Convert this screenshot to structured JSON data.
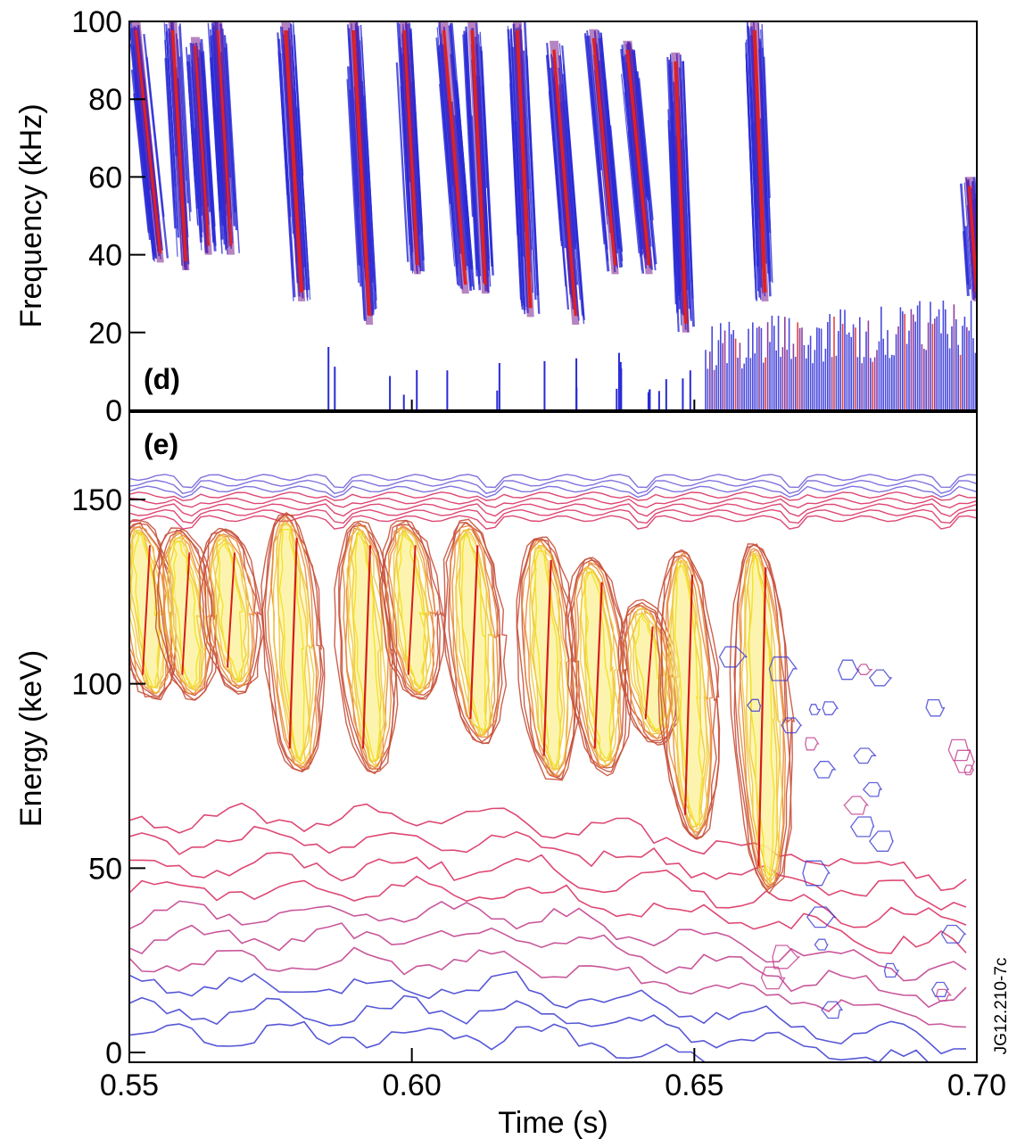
{
  "chart_data": [
    {
      "panel": "(d)",
      "type": "heatmap",
      "xlim": [
        0.55,
        0.7
      ],
      "ylim": [
        0,
        100
      ],
      "ylabel": "Frequency (kHz)",
      "y_ticks": [
        "0",
        "20",
        "40",
        "60",
        "80",
        "100"
      ],
      "y_tick_values": [
        0,
        20,
        40,
        60,
        80,
        100
      ],
      "colors": {
        "low": "#2a2ad6",
        "mid": "#7a1f8f",
        "high": "#e02020"
      },
      "chirp_bursts": [
        {
          "t": 0.551,
          "f_top": 100,
          "f_bottom": 38,
          "dt": 0.0045,
          "intensity": 0.6
        },
        {
          "t": 0.5575,
          "f_top": 100,
          "f_bottom": 36,
          "dt": 0.0025,
          "intensity": 0.8
        },
        {
          "t": 0.5615,
          "f_top": 96,
          "f_bottom": 40,
          "dt": 0.0025,
          "intensity": 0.5
        },
        {
          "t": 0.5655,
          "f_top": 100,
          "f_bottom": 40,
          "dt": 0.0025,
          "intensity": 0.5
        },
        {
          "t": 0.5775,
          "f_top": 100,
          "f_bottom": 28,
          "dt": 0.003,
          "intensity": 1.0
        },
        {
          "t": 0.5895,
          "f_top": 100,
          "f_bottom": 22,
          "dt": 0.003,
          "intensity": 0.9
        },
        {
          "t": 0.5985,
          "f_top": 100,
          "f_bottom": 35,
          "dt": 0.0025,
          "intensity": 0.7
        },
        {
          "t": 0.6055,
          "f_top": 100,
          "f_bottom": 30,
          "dt": 0.004,
          "intensity": 0.7
        },
        {
          "t": 0.6105,
          "f_top": 100,
          "f_bottom": 30,
          "dt": 0.0025,
          "intensity": 0.8
        },
        {
          "t": 0.6185,
          "f_top": 100,
          "f_bottom": 24,
          "dt": 0.0025,
          "intensity": 0.9
        },
        {
          "t": 0.625,
          "f_top": 95,
          "f_bottom": 22,
          "dt": 0.004,
          "intensity": 0.7
        },
        {
          "t": 0.632,
          "f_top": 98,
          "f_bottom": 35,
          "dt": 0.004,
          "intensity": 0.7
        },
        {
          "t": 0.638,
          "f_top": 95,
          "f_bottom": 35,
          "dt": 0.004,
          "intensity": 0.8
        },
        {
          "t": 0.6465,
          "f_top": 92,
          "f_bottom": 20,
          "dt": 0.002,
          "intensity": 0.9
        },
        {
          "t": 0.6605,
          "f_top": 100,
          "f_bottom": 28,
          "dt": 0.002,
          "intensity": 1.0
        },
        {
          "t": 0.6985,
          "f_top": 60,
          "f_bottom": 28,
          "dt": 0.0015,
          "intensity": 0.8
        }
      ],
      "low_frequency_band": {
        "t_start": 0.652,
        "t_end": 0.7,
        "f_max": 30
      }
    },
    {
      "panel": "(e)",
      "type": "heatmap",
      "xlim": [
        0.55,
        0.7
      ],
      "ylim": [
        0,
        160
      ],
      "ylabel": "Energy (keV)",
      "y_ticks": [
        "0",
        "50",
        "100",
        "150"
      ],
      "y_tick_values": [
        0,
        50,
        100,
        150
      ],
      "xlabel": "Time (s)",
      "x_ticks": [
        "0.55",
        "0.60",
        "0.65",
        "0.70"
      ],
      "x_tick_values": [
        0.55,
        0.6,
        0.65,
        0.7
      ],
      "colors": {
        "low": "#3a3ad0",
        "mid": "#d8285a",
        "high": "#f2e21a"
      },
      "top_contour_energy": 156,
      "bursts": [
        {
          "t": 0.553,
          "E_top": 140,
          "E_bottom": 100,
          "intensity": 0.9
        },
        {
          "t": 0.56,
          "E_top": 138,
          "E_bottom": 100,
          "intensity": 0.9
        },
        {
          "t": 0.568,
          "E_top": 138,
          "E_bottom": 102,
          "intensity": 0.9
        },
        {
          "t": 0.579,
          "E_top": 142,
          "E_bottom": 80,
          "intensity": 1.0
        },
        {
          "t": 0.592,
          "E_top": 140,
          "E_bottom": 80,
          "intensity": 1.0
        },
        {
          "t": 0.6,
          "E_top": 140,
          "E_bottom": 100,
          "intensity": 0.9
        },
        {
          "t": 0.611,
          "E_top": 140,
          "E_bottom": 88,
          "intensity": 1.0
        },
        {
          "t": 0.624,
          "E_top": 136,
          "E_bottom": 78,
          "intensity": 1.0
        },
        {
          "t": 0.633,
          "E_top": 130,
          "E_bottom": 80,
          "intensity": 1.0
        },
        {
          "t": 0.642,
          "E_top": 118,
          "E_bottom": 88,
          "intensity": 0.9
        },
        {
          "t": 0.649,
          "E_top": 132,
          "E_bottom": 62,
          "intensity": 1.0
        },
        {
          "t": 0.662,
          "E_top": 134,
          "E_bottom": 48,
          "intensity": 1.0
        }
      ]
    }
  ],
  "panel_d_label": "(d)",
  "panel_e_label": "(e)",
  "figure_id": "JG12.210-7c"
}
